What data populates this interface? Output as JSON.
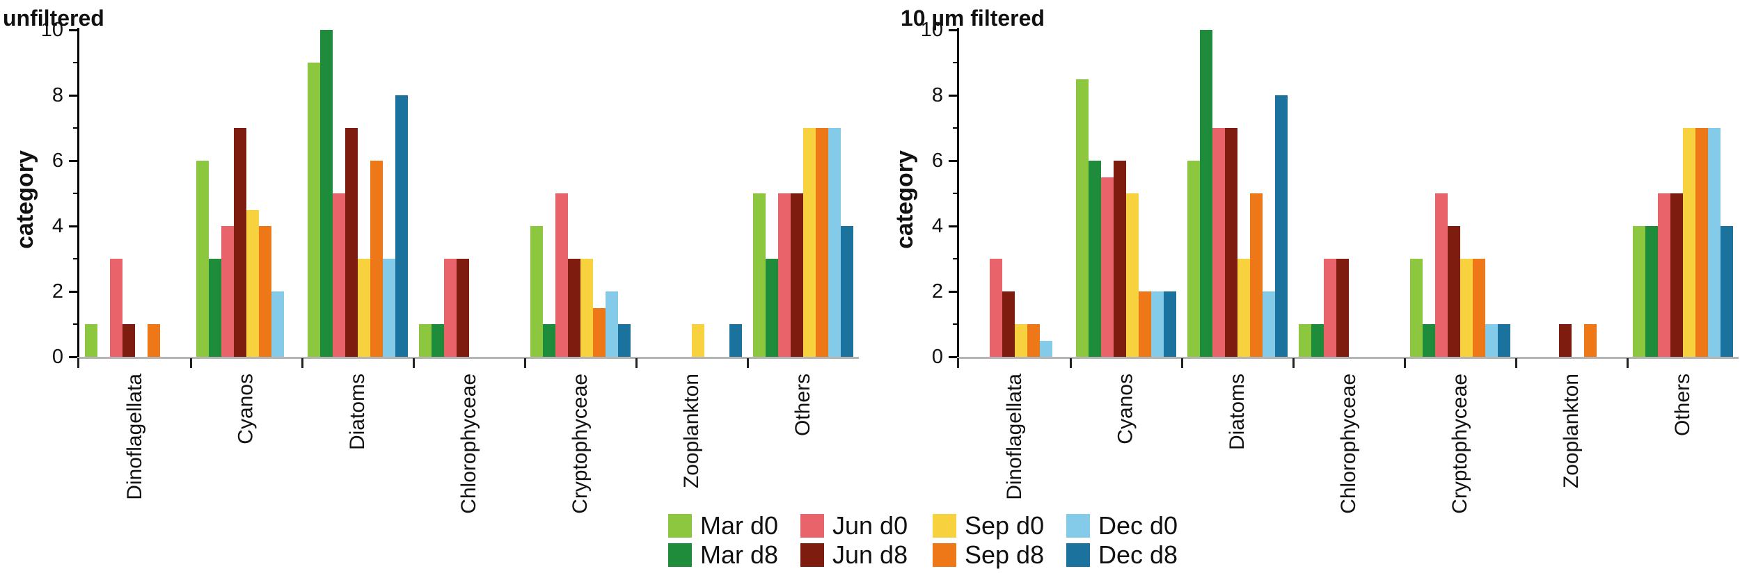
{
  "figure": {
    "background": "#ffffff",
    "axis_color": "#000000",
    "baseline_color": "#b5b5b5"
  },
  "legend": {
    "items": [
      {
        "label": "Mar d0",
        "color": "#8dc63f"
      },
      {
        "label": "Mar d8",
        "color": "#1e8c3a"
      },
      {
        "label": "Jun d0",
        "color": "#e8636a"
      },
      {
        "label": "Jun d8",
        "color": "#7e1c10"
      },
      {
        "label": "Sep d0",
        "color": "#f7d23e"
      },
      {
        "label": "Sep d8",
        "color": "#ee7818"
      },
      {
        "label": "Dec d0",
        "color": "#83cbe8"
      },
      {
        "label": "Dec d8",
        "color": "#1b729c"
      }
    ]
  },
  "chart_data": [
    {
      "type": "bar",
      "title": "unfiltered",
      "xlabel": "",
      "ylabel": "category",
      "ylim": [
        0,
        10
      ],
      "yticks": [
        0,
        2,
        4,
        6,
        8,
        10
      ],
      "grid": false,
      "legend_position": "bottom-center",
      "categories": [
        "Dinoflagellata",
        "Cyanos",
        "Diatoms",
        "Chlorophyceae",
        "Cryptophyceae",
        "Zooplankton",
        "Others"
      ],
      "series": [
        {
          "name": "Mar d0",
          "color": "#8dc63f",
          "values": [
            1,
            6,
            9,
            1,
            4,
            0,
            5
          ]
        },
        {
          "name": "Mar d8",
          "color": "#1e8c3a",
          "values": [
            0,
            3,
            10,
            1,
            1,
            0,
            3
          ]
        },
        {
          "name": "Jun d0",
          "color": "#e8636a",
          "values": [
            3,
            4,
            5,
            3,
            5,
            0,
            5
          ]
        },
        {
          "name": "Jun d8",
          "color": "#7e1c10",
          "values": [
            1,
            7,
            7,
            3,
            3,
            0,
            5
          ]
        },
        {
          "name": "Sep d0",
          "color": "#f7d23e",
          "values": [
            0,
            4.5,
            3,
            0,
            3,
            1,
            7
          ]
        },
        {
          "name": "Sep d8",
          "color": "#ee7818",
          "values": [
            1,
            4,
            6,
            0,
            1.5,
            0,
            7
          ]
        },
        {
          "name": "Dec d0",
          "color": "#83cbe8",
          "values": [
            0,
            2,
            3,
            0,
            2,
            0,
            7
          ]
        },
        {
          "name": "Dec d8",
          "color": "#1b729c",
          "values": [
            0,
            0,
            8,
            0,
            1,
            1,
            4
          ]
        }
      ]
    },
    {
      "type": "bar",
      "title": "10 µm filtered",
      "xlabel": "",
      "ylabel": "category",
      "ylim": [
        0,
        10
      ],
      "yticks": [
        0,
        2,
        4,
        6,
        8,
        10
      ],
      "grid": false,
      "legend_position": "bottom-center",
      "categories": [
        "Dinoflagellata",
        "Cyanos",
        "Diatoms",
        "Chlorophyceae",
        "Cryptophyceae",
        "Zooplankton",
        "Others"
      ],
      "series": [
        {
          "name": "Mar d0",
          "color": "#8dc63f",
          "values": [
            0,
            8.5,
            6,
            1,
            3,
            0,
            4
          ]
        },
        {
          "name": "Mar d8",
          "color": "#1e8c3a",
          "values": [
            0,
            6,
            10,
            1,
            1,
            0,
            4
          ]
        },
        {
          "name": "Jun d0",
          "color": "#e8636a",
          "values": [
            3,
            5.5,
            7,
            3,
            5,
            0,
            5
          ]
        },
        {
          "name": "Jun d8",
          "color": "#7e1c10",
          "values": [
            2,
            6,
            7,
            3,
            4,
            1,
            5
          ]
        },
        {
          "name": "Sep d0",
          "color": "#f7d23e",
          "values": [
            1,
            5,
            3,
            0,
            3,
            0,
            7
          ]
        },
        {
          "name": "Sep d8",
          "color": "#ee7818",
          "values": [
            1,
            2,
            5,
            0,
            3,
            1,
            7
          ]
        },
        {
          "name": "Dec d0",
          "color": "#83cbe8",
          "values": [
            0.5,
            2,
            2,
            0,
            1,
            0,
            7
          ]
        },
        {
          "name": "Dec d8",
          "color": "#1b729c",
          "values": [
            0,
            2,
            8,
            0,
            1,
            0,
            4
          ]
        }
      ]
    }
  ]
}
